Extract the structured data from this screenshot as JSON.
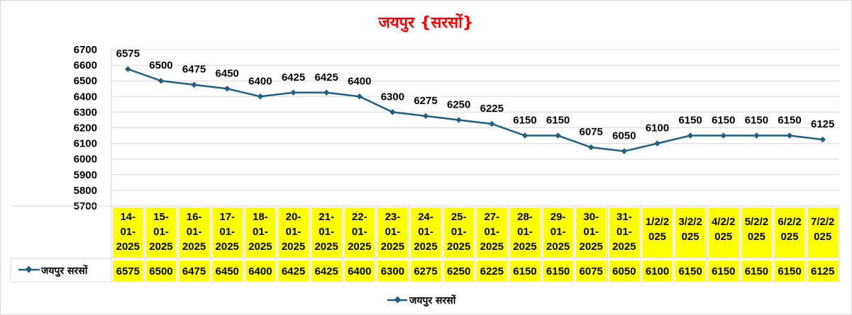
{
  "chart_data": {
    "type": "line",
    "title": "जयपुर {सरसों}",
    "title_color": "#ff0000",
    "series_color": "#1f5f7f",
    "highlight_color": "#ffff00",
    "ylim": [
      5700,
      6700
    ],
    "y_ticks": [
      5700,
      5800,
      5900,
      6000,
      6100,
      6200,
      6300,
      6400,
      6500,
      6600,
      6700
    ],
    "grid": true,
    "legend_position": "bottom",
    "categories": [
      [
        "14-",
        "01-",
        "2025"
      ],
      [
        "15-",
        "01-",
        "2025"
      ],
      [
        "16-",
        "01-",
        "2025"
      ],
      [
        "17-",
        "01-",
        "2025"
      ],
      [
        "18-",
        "01-",
        "2025"
      ],
      [
        "20-",
        "01-",
        "2025"
      ],
      [
        "21-",
        "01-",
        "2025"
      ],
      [
        "22-",
        "01-",
        "2025"
      ],
      [
        "23-",
        "01-",
        "2025"
      ],
      [
        "24-",
        "01-",
        "2025"
      ],
      [
        "25-",
        "01-",
        "2025"
      ],
      [
        "27-",
        "01-",
        "2025"
      ],
      [
        "28-",
        "01-",
        "2025"
      ],
      [
        "29-",
        "01-",
        "2025"
      ],
      [
        "30-",
        "01-",
        "2025"
      ],
      [
        "31-",
        "01-",
        "2025"
      ],
      [
        "1/2/2",
        "025"
      ],
      [
        "3/2/2",
        "025"
      ],
      [
        "4/2/2",
        "025"
      ],
      [
        "5/2/2",
        "025"
      ],
      [
        "6/2/2",
        "025"
      ],
      [
        "7/2/2",
        "025"
      ]
    ],
    "series": [
      {
        "name": "जयपुर सरसों",
        "values": [
          6575,
          6500,
          6475,
          6450,
          6400,
          6425,
          6425,
          6400,
          6300,
          6275,
          6250,
          6225,
          6150,
          6150,
          6075,
          6050,
          6100,
          6150,
          6150,
          6150,
          6150,
          6125
        ]
      }
    ]
  }
}
